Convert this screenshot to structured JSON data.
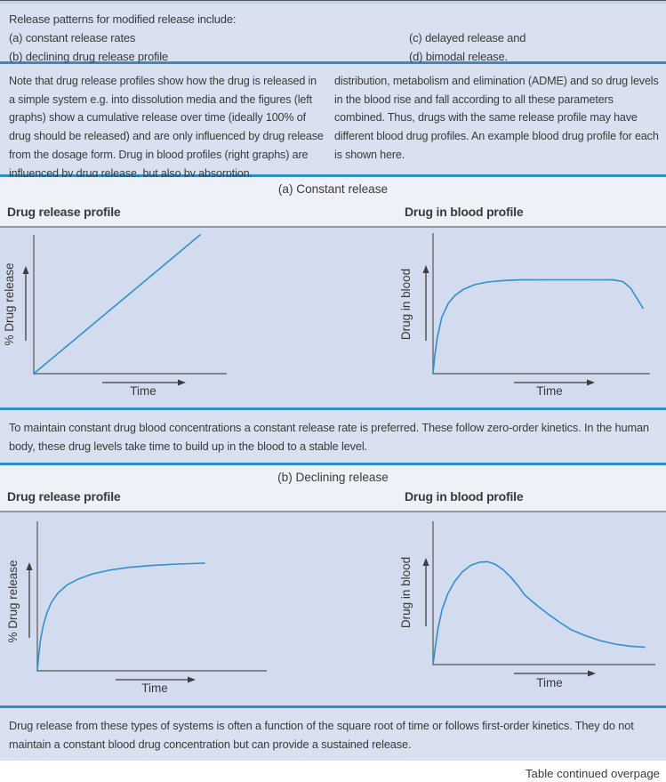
{
  "intro": {
    "title": "Release patterns for modified release include:",
    "left_items": [
      "(a) constant release rates",
      "(b) declining drug release profile"
    ],
    "right_items": [
      "(c) delayed release and",
      "(d) bimodal release."
    ]
  },
  "note": {
    "left": "Note that drug release profiles show how the drug is released in a simple system e.g. into dissolution media and the figures (left graphs) show a cumulative release over time (ideally 100% of drug should be released) and are only influenced by drug release from the dosage form. Drug in blood profiles (right graphs) are influenced by drug release, but also by absorption,",
    "right": "distribution, metabolism and elimination (ADME) and so drug levels in the blood rise and fall according to all these parameters combined. Thus, drugs with the same release profile may have different blood drug profiles. An example blood drug profile for each is shown here."
  },
  "sections": [
    {
      "heading": "(a) Constant release",
      "left_chart_title": "Drug release profile",
      "right_chart_title": "Drug in blood profile",
      "caption": "To maintain constant drug blood concentrations a constant release rate is preferred. These follow zero-order kinetics. In the human body, these drug levels take time to build up in the blood to a stable level."
    },
    {
      "heading": "(b) Declining release",
      "left_chart_title": "Drug release profile",
      "right_chart_title": "Drug in blood profile",
      "caption": "Drug release from these types of systems is often a function of the square root of time or follows first-order kinetics. They do not maintain a constant blood drug concentration but can provide a sustained release."
    }
  ],
  "footer": "Table continued overpage",
  "colors": {
    "separator_blue": "#2f8dc8",
    "curve_blue": "#3190cd",
    "axis_gray": "#6a6a6a",
    "arrow_dark": "#3d3d3d",
    "text": "#3a3a3a",
    "row_bg": "#d9e0ef",
    "chart_bg": "#d2dcee",
    "header_bg": "#eef1f8",
    "top_strip": "#b3d7ea"
  },
  "chart_data": [
    {
      "type": "line",
      "section": "(a) Constant release",
      "title": "Drug release profile",
      "xlabel": "Time",
      "ylabel": "% Drug release",
      "axes": "qualitative sketch, no tick labels, arrows indicate increasing direction",
      "shape": "straight line rising linearly from the origin (zero-order release)",
      "points": [
        [
          0,
          0
        ],
        [
          0.862,
          1.0
        ]
      ]
    },
    {
      "type": "line",
      "section": "(a) Constant release",
      "title": "Drug in blood profile",
      "xlabel": "Time",
      "ylabel": "Drug in blood",
      "axes": "qualitative sketch, no tick labels, arrows indicate increasing direction",
      "shape": "rapid rise from origin to a stable plateau, slight fall-off at far right",
      "points": [
        [
          0,
          0
        ],
        [
          0.008,
          0.13
        ],
        [
          0.02,
          0.26
        ],
        [
          0.04,
          0.4
        ],
        [
          0.07,
          0.5
        ],
        [
          0.1,
          0.555
        ],
        [
          0.14,
          0.6
        ],
        [
          0.19,
          0.632
        ],
        [
          0.25,
          0.652
        ],
        [
          0.32,
          0.662
        ],
        [
          0.4,
          0.667
        ],
        [
          0.55,
          0.668
        ],
        [
          0.7,
          0.668
        ],
        [
          0.83,
          0.667
        ],
        [
          0.875,
          0.655
        ],
        [
          0.91,
          0.61
        ],
        [
          0.968,
          0.465
        ]
      ]
    },
    {
      "type": "line",
      "section": "(b) Declining release",
      "title": "Drug release profile",
      "xlabel": "Time",
      "ylabel": "% Drug release",
      "axes": "qualitative sketch, no tick labels, arrows indicate increasing direction",
      "shape": "square-root-of-time curve: steep initial release levelling toward a plateau",
      "points": [
        [
          0,
          0
        ],
        [
          0.006,
          0.1
        ],
        [
          0.014,
          0.21
        ],
        [
          0.025,
          0.3
        ],
        [
          0.04,
          0.38
        ],
        [
          0.06,
          0.455
        ],
        [
          0.09,
          0.52
        ],
        [
          0.13,
          0.575
        ],
        [
          0.18,
          0.615
        ],
        [
          0.24,
          0.648
        ],
        [
          0.31,
          0.672
        ],
        [
          0.4,
          0.692
        ],
        [
          0.5,
          0.705
        ],
        [
          0.61,
          0.714
        ],
        [
          0.729,
          0.72
        ]
      ]
    },
    {
      "type": "line",
      "section": "(b) Declining release",
      "title": "Drug in blood profile",
      "xlabel": "Time",
      "ylabel": "Drug in blood",
      "axes": "qualitative sketch, no tick labels, arrows indicate increasing direction",
      "shape": "rise to a single peak then prolonged declining tail (sustained release)",
      "points": [
        [
          0,
          0
        ],
        [
          0.01,
          0.12
        ],
        [
          0.022,
          0.25
        ],
        [
          0.04,
          0.38
        ],
        [
          0.065,
          0.49
        ],
        [
          0.095,
          0.575
        ],
        [
          0.13,
          0.645
        ],
        [
          0.17,
          0.693
        ],
        [
          0.21,
          0.715
        ],
        [
          0.245,
          0.718
        ],
        [
          0.28,
          0.7
        ],
        [
          0.315,
          0.662
        ],
        [
          0.35,
          0.61
        ],
        [
          0.385,
          0.545
        ],
        [
          0.41,
          0.49
        ],
        [
          0.435,
          0.455
        ],
        [
          0.47,
          0.41
        ],
        [
          0.52,
          0.35
        ],
        [
          0.57,
          0.295
        ],
        [
          0.62,
          0.245
        ],
        [
          0.68,
          0.205
        ],
        [
          0.75,
          0.168
        ],
        [
          0.82,
          0.143
        ],
        [
          0.89,
          0.128
        ],
        [
          0.952,
          0.122
        ]
      ]
    }
  ]
}
